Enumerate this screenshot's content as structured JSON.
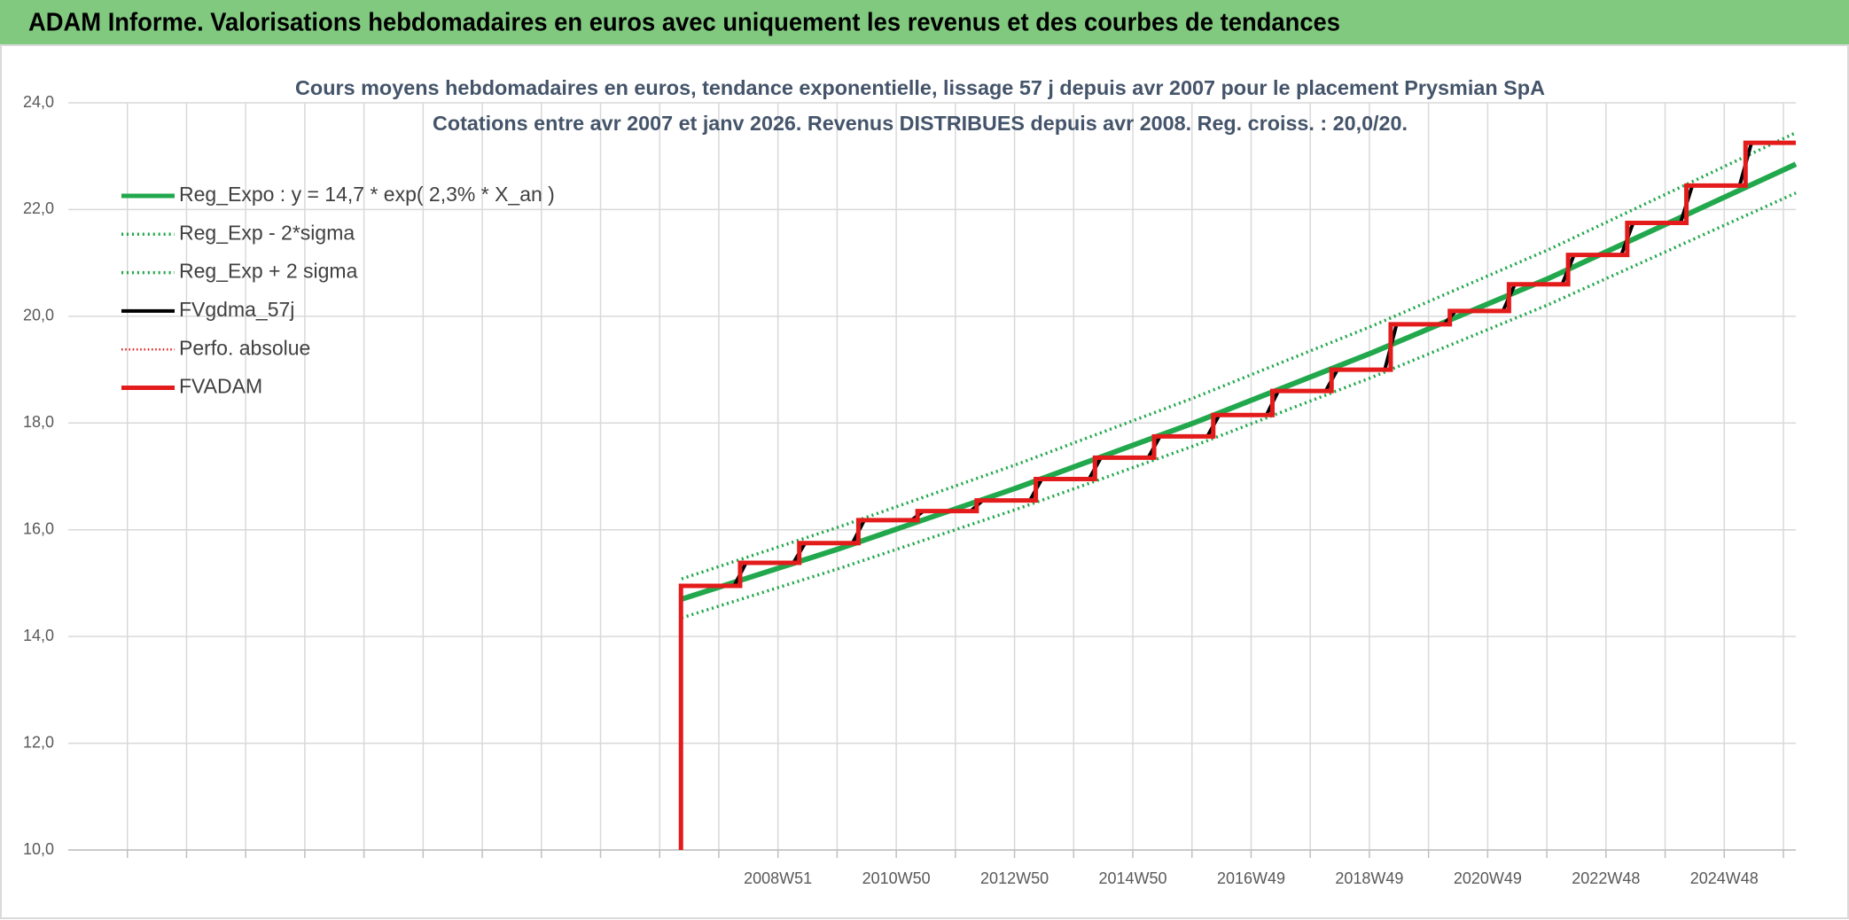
{
  "header": {
    "title": "ADAM Informe. Valorisations hebdomadaires en euros avec uniquement les revenus et des courbes de tendances"
  },
  "chart_data": {
    "type": "line",
    "title": "Cours moyens hebdomadaires en euros, tendance exponentielle, lissage 57 j depuis avr 2007 pour le placement Prysmian SpA",
    "subtitle": "Cotations entre avr 2007 et janv 2026. Revenus DISTRIBUES depuis avr 2008. Reg. croiss. : 20,0/20.",
    "ylim": [
      10,
      24
    ],
    "yticks": [
      {
        "value": 10,
        "label": "10,0"
      },
      {
        "value": 12,
        "label": "12,0"
      },
      {
        "value": 14,
        "label": "14,0"
      },
      {
        "value": 16,
        "label": "16,0"
      },
      {
        "value": 18,
        "label": "18,0"
      },
      {
        "value": 20,
        "label": "20,0"
      },
      {
        "value": 22,
        "label": "22,0"
      },
      {
        "value": 24,
        "label": "24,0"
      }
    ],
    "xlim": [
      1996.95,
      2026.16
    ],
    "xticks": [
      {
        "value": 1997.95,
        "label": null
      },
      {
        "value": 1998.95,
        "label": null
      },
      {
        "value": 1999.95,
        "label": null
      },
      {
        "value": 2000.95,
        "label": null
      },
      {
        "value": 2001.95,
        "label": null
      },
      {
        "value": 2002.95,
        "label": null
      },
      {
        "value": 2003.95,
        "label": null
      },
      {
        "value": 2004.95,
        "label": null
      },
      {
        "value": 2005.95,
        "label": null
      },
      {
        "value": 2006.95,
        "label": null
      },
      {
        "value": 2007.95,
        "label": null
      },
      {
        "value": 2008.95,
        "label": "2008W51"
      },
      {
        "value": 2009.95,
        "label": null
      },
      {
        "value": 2010.95,
        "label": "2010W50"
      },
      {
        "value": 2011.95,
        "label": null
      },
      {
        "value": 2012.95,
        "label": "2012W50"
      },
      {
        "value": 2013.95,
        "label": null
      },
      {
        "value": 2014.95,
        "label": "2014W50"
      },
      {
        "value": 2015.95,
        "label": null
      },
      {
        "value": 2016.95,
        "label": "2016W49"
      },
      {
        "value": 2017.95,
        "label": null
      },
      {
        "value": 2018.95,
        "label": "2018W49"
      },
      {
        "value": 2019.95,
        "label": null
      },
      {
        "value": 2020.95,
        "label": "2020W49"
      },
      {
        "value": 2021.95,
        "label": null
      },
      {
        "value": 2022.95,
        "label": "2022W48"
      },
      {
        "value": 2023.95,
        "label": null
      },
      {
        "value": 2024.95,
        "label": "2024W48"
      },
      {
        "value": 2025.95,
        "label": null
      }
    ],
    "grid": true,
    "legend": "top-left",
    "series": [
      {
        "name": "Reg_Expo : y = 14,7 * exp( 2,3% *  X_an )",
        "color": "#22a84c",
        "width": 6,
        "dash": "solid",
        "x": [
          2007.32,
          2010,
          2013,
          2016,
          2019,
          2022,
          2026.16
        ],
        "values": [
          14.7,
          15.65,
          16.79,
          18.01,
          19.32,
          20.72,
          22.85
        ]
      },
      {
        "name": "Reg_Exp - 2*sigma",
        "color": "#22a84c",
        "width": 3.5,
        "dash": "dotted",
        "x": [
          2007.32,
          2010,
          2013,
          2016,
          2019,
          2022,
          2026.16
        ],
        "values": [
          14.35,
          15.28,
          16.39,
          17.58,
          18.86,
          20.23,
          22.31
        ]
      },
      {
        "name": "Reg_Exp + 2 sigma",
        "color": "#22a84c",
        "width": 3.5,
        "dash": "dotted",
        "x": [
          2007.32,
          2010,
          2013,
          2016,
          2019,
          2022,
          2026.16
        ],
        "values": [
          15.08,
          16.06,
          17.23,
          18.48,
          19.82,
          21.26,
          23.44
        ]
      },
      {
        "name": "FVgdma_57j",
        "color": "#000000",
        "width": 4,
        "dash": "solid",
        "x": [
          2007.31,
          2008.21,
          2008.41,
          2009.21,
          2009.41,
          2010.21,
          2010.41,
          2011.21,
          2011.41,
          2012.21,
          2012.41,
          2013.21,
          2013.41,
          2014.21,
          2014.41,
          2015.21,
          2015.41,
          2016.21,
          2016.41,
          2017.21,
          2017.41,
          2018.21,
          2018.41,
          2019.21,
          2019.41,
          2020.21,
          2020.41,
          2021.21,
          2021.41,
          2022.21,
          2022.41,
          2023.21,
          2023.41,
          2024.21,
          2024.41,
          2025.21,
          2025.41,
          2026.16
        ],
        "values": [
          14.95,
          14.95,
          15.38,
          15.38,
          15.75,
          15.75,
          16.18,
          16.18,
          16.35,
          16.35,
          16.55,
          16.55,
          16.95,
          16.95,
          17.35,
          17.35,
          17.75,
          17.75,
          18.15,
          18.15,
          18.6,
          18.6,
          19.0,
          19.0,
          19.85,
          19.85,
          20.1,
          20.1,
          20.6,
          20.6,
          21.15,
          21.15,
          21.75,
          21.75,
          22.45,
          22.45,
          23.25,
          23.25
        ]
      },
      {
        "name": "Perfo. absolue",
        "color": "#e31b1b",
        "width": 2.5,
        "dash": "dotted",
        "x": [
          2007.31,
          2026.16
        ],
        "values": [
          null,
          null
        ]
      },
      {
        "name": "FVADAM",
        "color": "#e31b1b",
        "width": 5,
        "dash": "solid",
        "x": [
          2007.31,
          2007.31,
          2008.31,
          2008.31,
          2009.31,
          2009.31,
          2010.31,
          2010.31,
          2011.31,
          2011.31,
          2012.31,
          2012.31,
          2013.31,
          2013.31,
          2014.31,
          2014.31,
          2015.31,
          2015.31,
          2016.31,
          2016.31,
          2017.31,
          2017.31,
          2018.31,
          2018.31,
          2019.31,
          2019.31,
          2020.31,
          2020.31,
          2021.31,
          2021.31,
          2022.31,
          2022.31,
          2023.31,
          2023.31,
          2024.31,
          2024.31,
          2025.31,
          2025.31,
          2026.16
        ],
        "values": [
          10,
          14.95,
          14.95,
          15.38,
          15.38,
          15.75,
          15.75,
          16.18,
          16.18,
          16.35,
          16.35,
          16.55,
          16.55,
          16.95,
          16.95,
          17.35,
          17.35,
          17.75,
          17.75,
          18.15,
          18.15,
          18.6,
          18.6,
          19.0,
          19.0,
          19.85,
          19.85,
          20.1,
          20.1,
          20.6,
          20.6,
          21.15,
          21.15,
          21.75,
          21.75,
          22.45,
          22.45,
          23.25,
          23.25
        ]
      }
    ]
  }
}
